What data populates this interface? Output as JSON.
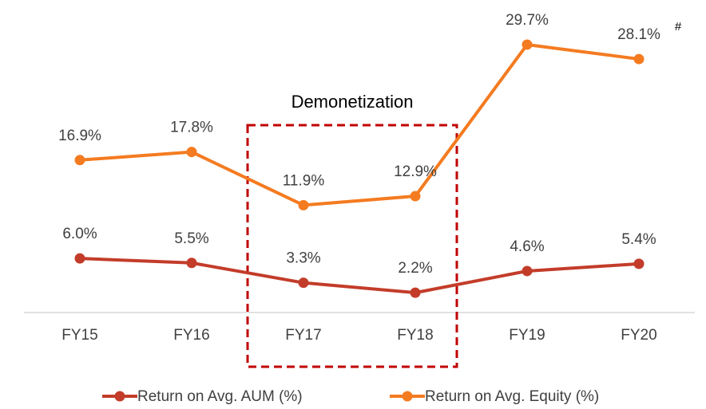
{
  "chart_data": {
    "type": "line",
    "categories": [
      "FY15",
      "FY16",
      "FY17",
      "FY18",
      "FY19",
      "FY20"
    ],
    "series": [
      {
        "name": "Return on Avg. AUM (%)",
        "color": "#c33c2a",
        "values": [
          6.0,
          5.5,
          3.3,
          2.2,
          4.6,
          5.4
        ],
        "value_labels": [
          "6.0%",
          "5.5%",
          "3.3%",
          "2.2%",
          "4.6%",
          "5.4%"
        ]
      },
      {
        "name": "Return on Avg. Equity (%)",
        "color": "#f47b20",
        "values": [
          16.9,
          17.8,
          11.9,
          12.9,
          29.7,
          28.1
        ],
        "value_labels": [
          "16.9%",
          "17.8%",
          "11.9%",
          "12.9%",
          "29.7%",
          "28.1%"
        ]
      }
    ],
    "annotations": [
      "Demonetization",
      "#"
    ],
    "ylim": [
      0,
      35
    ],
    "legend": "bottom"
  }
}
